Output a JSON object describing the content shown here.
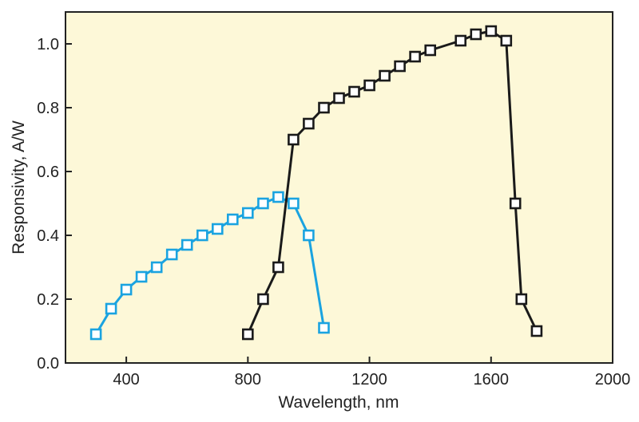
{
  "chart_data": {
    "type": "line",
    "xlabel": "Wavelength, nm",
    "ylabel": "Responsivity, A/W",
    "xlim": [
      200,
      2000
    ],
    "ylim": [
      0,
      1.1
    ],
    "xticks": [
      400,
      800,
      1200,
      1600,
      2000
    ],
    "xtick_labels": [
      "400",
      "800",
      "1200",
      "1600",
      "2000"
    ],
    "yticks": [
      0,
      0.2,
      0.4,
      0.6,
      0.8,
      1.0
    ],
    "ytick_labels": [
      "0.0",
      "0.2",
      "0.4",
      "0.6",
      "0.8",
      "1.0"
    ],
    "grid": false,
    "background": "#fdf8d8",
    "series": [
      {
        "color": "#1aa3e0",
        "marker": "open-square",
        "x": [
          300,
          350,
          400,
          450,
          500,
          550,
          600,
          650,
          700,
          750,
          800,
          850,
          900,
          950,
          1000,
          1050
        ],
        "y": [
          0.09,
          0.17,
          0.23,
          0.27,
          0.3,
          0.34,
          0.37,
          0.4,
          0.42,
          0.45,
          0.47,
          0.5,
          0.52,
          0.5,
          0.4,
          0.11
        ]
      },
      {
        "color": "#1a1a1a",
        "marker": "open-square",
        "x": [
          800,
          850,
          900,
          950,
          1000,
          1050,
          1100,
          1150,
          1200,
          1250,
          1300,
          1350,
          1400,
          1500,
          1550,
          1600,
          1650,
          1680,
          1700,
          1750
        ],
        "y": [
          0.09,
          0.2,
          0.3,
          0.7,
          0.75,
          0.8,
          0.83,
          0.85,
          0.87,
          0.9,
          0.93,
          0.96,
          0.98,
          1.01,
          1.03,
          1.04,
          1.01,
          0.5,
          0.2,
          0.1
        ]
      }
    ]
  }
}
